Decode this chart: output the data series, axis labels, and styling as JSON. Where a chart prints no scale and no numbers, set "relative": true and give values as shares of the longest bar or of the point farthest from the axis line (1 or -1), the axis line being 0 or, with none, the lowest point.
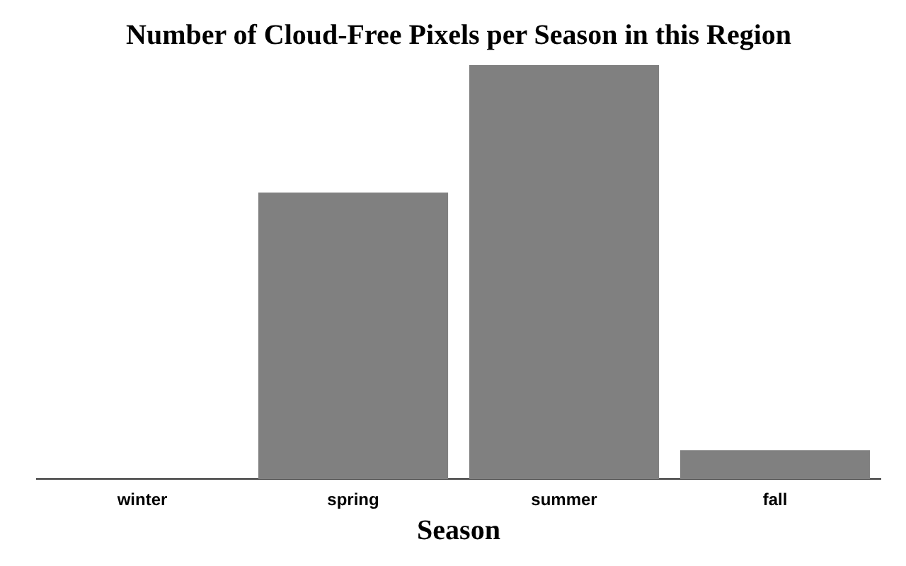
{
  "chart_data": {
    "type": "bar",
    "title": "Number of Cloud-Free Pixels per Season in this Region",
    "xlabel": "Season",
    "categories": [
      "winter",
      "spring",
      "summer",
      "fall"
    ],
    "values": [
      0,
      0.692,
      1,
      0.07
    ],
    "color": "#808080",
    "relative": true,
    "grid": false,
    "legend": false
  }
}
